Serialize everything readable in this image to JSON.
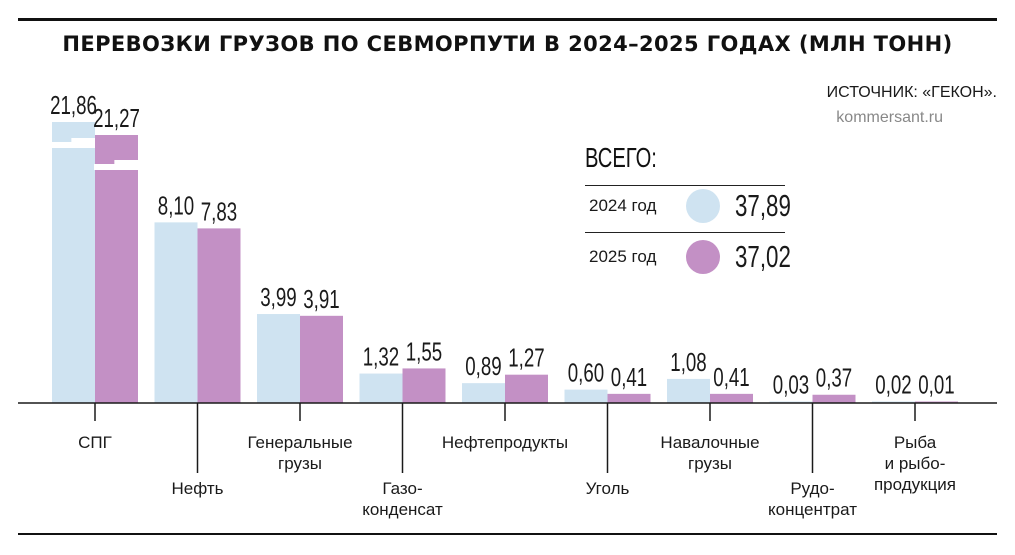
{
  "title": "ПЕРЕВОЗКИ ГРУЗОВ ПО СЕВМОРПУТИ В 2024–2025 ГОДАХ (МЛН ТОНН)",
  "source": "ИСТОЧНИК: «ГЕКОН».",
  "site": "kommersant.ru",
  "legend": {
    "title": "ВСЕГО:",
    "items": [
      {
        "year_label": "2024 год",
        "total": "37,89",
        "color": "#cfe3f1"
      },
      {
        "year_label": "2025 год",
        "total": "37,02",
        "color": "#c390c5"
      }
    ]
  },
  "chart_data": {
    "type": "bar",
    "title": "ПЕРЕВОЗКИ ГРУЗОВ ПО СЕВМОРПУТИ В 2024–2025 ГОДАХ (МЛН ТОНН)",
    "categories": [
      [
        "СПГ"
      ],
      [
        "Нефть"
      ],
      [
        "Генеральные",
        "грузы"
      ],
      [
        "Газо-",
        "конденсат"
      ],
      [
        "Нефтепродукты"
      ],
      [
        "Уголь"
      ],
      [
        "Навалочные",
        "грузы"
      ],
      [
        "Рудо-",
        "концентрат"
      ],
      [
        "Рыба",
        "и рыбо-",
        "продукция"
      ]
    ],
    "series": [
      {
        "name": "2024 год",
        "color": "#cfe3f1",
        "values": [
          21.86,
          8.1,
          3.99,
          1.32,
          0.89,
          0.6,
          1.08,
          0.03,
          0.02
        ],
        "labels": [
          "21,86",
          "8,10",
          "3,99",
          "1,32",
          "0,89",
          "0,60",
          "1,08",
          "0,03",
          "0,02"
        ]
      },
      {
        "name": "2025 год",
        "color": "#c390c5",
        "values": [
          21.27,
          7.83,
          3.91,
          1.55,
          1.27,
          0.41,
          0.41,
          0.37,
          0.01
        ],
        "labels": [
          "21,27",
          "7,83",
          "3,91",
          "1,55",
          "1,27",
          "0,41",
          "0,41",
          "0,37",
          "0,01"
        ]
      }
    ],
    "axis_break": true,
    "grid": false,
    "legend_position": "top-right"
  }
}
